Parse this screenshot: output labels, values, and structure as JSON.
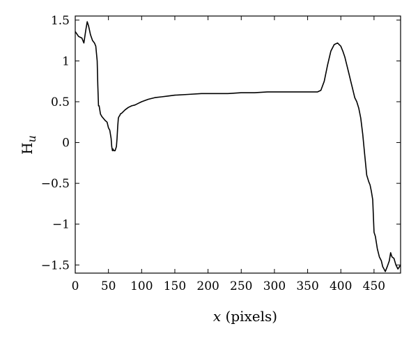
{
  "chart_data": {
    "type": "line",
    "title": "",
    "xlabel": {
      "var": "x",
      "rest": " (pixels)"
    },
    "ylabel": {
      "main": "H",
      "sub": "u"
    },
    "xlim": [
      0,
      490
    ],
    "ylim": [
      -1.6,
      1.55
    ],
    "xticks": [
      0,
      50,
      100,
      150,
      200,
      250,
      300,
      350,
      400,
      450
    ],
    "yticks": [
      1.5,
      1,
      0.5,
      0,
      -0.5,
      -1,
      -1.5
    ],
    "xtick_labels": [
      "0",
      "50",
      "100",
      "150",
      "200",
      "250",
      "300",
      "350",
      "400",
      "450"
    ],
    "ytick_labels": [
      "1.5",
      "1",
      "0.5",
      "0",
      "−0.5",
      "−1",
      "−1.5"
    ],
    "grid": false,
    "line_color": "#000000",
    "series": [
      {
        "x": [
          0,
          5,
          10,
          13,
          16,
          18,
          20,
          23,
          26,
          29,
          31,
          33,
          34,
          35,
          36,
          38,
          40,
          42,
          45,
          48,
          50,
          52,
          54,
          55,
          56,
          57,
          58,
          60,
          62,
          63,
          64,
          65,
          66,
          67,
          68,
          70,
          75,
          80,
          85,
          90,
          95,
          100,
          110,
          120,
          130,
          140,
          150,
          170,
          190,
          210,
          230,
          250,
          270,
          290,
          310,
          330,
          350,
          360,
          365,
          370,
          375,
          380,
          385,
          390,
          395,
          400,
          403,
          406,
          409,
          412,
          415,
          418,
          421,
          424,
          427,
          430,
          433,
          436,
          439,
          442,
          444,
          446,
          448,
          450,
          452,
          455,
          458,
          461,
          463,
          465,
          467,
          470,
          473,
          475,
          477,
          480,
          483,
          486,
          490
        ],
        "y": [
          1.36,
          1.3,
          1.28,
          1.22,
          1.38,
          1.48,
          1.43,
          1.32,
          1.25,
          1.22,
          1.18,
          1.0,
          0.7,
          0.45,
          0.45,
          0.35,
          0.32,
          0.3,
          0.27,
          0.25,
          0.18,
          0.15,
          0.05,
          -0.05,
          -0.1,
          -0.08,
          -0.1,
          -0.1,
          -0.05,
          0.05,
          0.2,
          0.3,
          0.32,
          0.33,
          0.35,
          0.36,
          0.4,
          0.43,
          0.45,
          0.46,
          0.48,
          0.5,
          0.53,
          0.55,
          0.56,
          0.57,
          0.58,
          0.59,
          0.6,
          0.6,
          0.6,
          0.61,
          0.61,
          0.62,
          0.62,
          0.62,
          0.62,
          0.62,
          0.62,
          0.64,
          0.75,
          0.95,
          1.12,
          1.2,
          1.22,
          1.18,
          1.12,
          1.05,
          0.95,
          0.85,
          0.75,
          0.65,
          0.55,
          0.5,
          0.42,
          0.3,
          0.1,
          -0.15,
          -0.4,
          -0.48,
          -0.52,
          -0.6,
          -0.7,
          -1.1,
          -1.15,
          -1.3,
          -1.4,
          -1.45,
          -1.52,
          -1.55,
          -1.58,
          -1.52,
          -1.45,
          -1.35,
          -1.4,
          -1.42,
          -1.5,
          -1.55,
          -1.5
        ]
      }
    ]
  }
}
